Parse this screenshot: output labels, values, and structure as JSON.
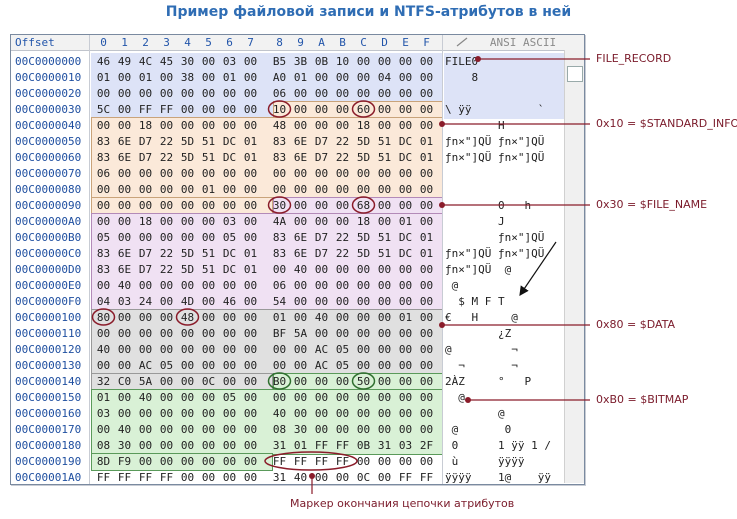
{
  "title": "Пример файловой записи и NTFS-атрибутов в ней",
  "header": {
    "offset_label": "Offset",
    "columns": [
      "0",
      "1",
      "2",
      "3",
      "4",
      "5",
      "6",
      "7",
      "8",
      "9",
      "A",
      "B",
      "C",
      "D",
      "E",
      "F"
    ],
    "ascii_label": "ANSI ASCII"
  },
  "rows": [
    {
      "offset": "00C0000000",
      "bytes": [
        "46",
        "49",
        "4C",
        "45",
        "30",
        "00",
        "03",
        "00",
        "B5",
        "3B",
        "0B",
        "10",
        "00",
        "00",
        "00",
        "00"
      ],
      "ascii": "FILE0"
    },
    {
      "offset": "00C0000010",
      "bytes": [
        "01",
        "00",
        "01",
        "00",
        "38",
        "00",
        "01",
        "00",
        "A0",
        "01",
        "00",
        "00",
        "00",
        "04",
        "00",
        "00"
      ],
      "ascii": "    8"
    },
    {
      "offset": "00C0000020",
      "bytes": [
        "00",
        "00",
        "00",
        "00",
        "00",
        "00",
        "00",
        "00",
        "06",
        "00",
        "00",
        "00",
        "00",
        "00",
        "00",
        "00"
      ],
      "ascii": ""
    },
    {
      "offset": "00C0000030",
      "bytes": [
        "5C",
        "00",
        "FF",
        "FF",
        "00",
        "00",
        "00",
        "00",
        "10",
        "00",
        "00",
        "00",
        "60",
        "00",
        "00",
        "00"
      ],
      "ascii": "\\ ÿÿ          `"
    },
    {
      "offset": "00C0000040",
      "bytes": [
        "00",
        "00",
        "18",
        "00",
        "00",
        "00",
        "00",
        "00",
        "48",
        "00",
        "00",
        "00",
        "18",
        "00",
        "00",
        "00"
      ],
      "ascii": "        H"
    },
    {
      "offset": "00C0000050",
      "bytes": [
        "83",
        "6E",
        "D7",
        "22",
        "5D",
        "51",
        "DC",
        "01",
        "83",
        "6E",
        "D7",
        "22",
        "5D",
        "51",
        "DC",
        "01"
      ],
      "ascii": "ƒn×\"]QÜ ƒn×\"]QÜ"
    },
    {
      "offset": "00C0000060",
      "bytes": [
        "83",
        "6E",
        "D7",
        "22",
        "5D",
        "51",
        "DC",
        "01",
        "83",
        "6E",
        "D7",
        "22",
        "5D",
        "51",
        "DC",
        "01"
      ],
      "ascii": "ƒn×\"]QÜ ƒn×\"]QÜ"
    },
    {
      "offset": "00C0000070",
      "bytes": [
        "06",
        "00",
        "00",
        "00",
        "00",
        "00",
        "00",
        "00",
        "00",
        "00",
        "00",
        "00",
        "00",
        "00",
        "00",
        "00"
      ],
      "ascii": ""
    },
    {
      "offset": "00C0000080",
      "bytes": [
        "00",
        "00",
        "00",
        "00",
        "00",
        "01",
        "00",
        "00",
        "00",
        "00",
        "00",
        "00",
        "00",
        "00",
        "00",
        "00"
      ],
      "ascii": ""
    },
    {
      "offset": "00C0000090",
      "bytes": [
        "00",
        "00",
        "00",
        "00",
        "00",
        "00",
        "00",
        "00",
        "30",
        "00",
        "00",
        "00",
        "68",
        "00",
        "00",
        "00"
      ],
      "ascii": "        0   h"
    },
    {
      "offset": "00C00000A0",
      "bytes": [
        "00",
        "00",
        "18",
        "00",
        "00",
        "00",
        "03",
        "00",
        "4A",
        "00",
        "00",
        "00",
        "18",
        "00",
        "01",
        "00"
      ],
      "ascii": "        J"
    },
    {
      "offset": "00C00000B0",
      "bytes": [
        "05",
        "00",
        "00",
        "00",
        "00",
        "00",
        "05",
        "00",
        "83",
        "6E",
        "D7",
        "22",
        "5D",
        "51",
        "DC",
        "01"
      ],
      "ascii": "        ƒn×\"]QÜ"
    },
    {
      "offset": "00C00000C0",
      "bytes": [
        "83",
        "6E",
        "D7",
        "22",
        "5D",
        "51",
        "DC",
        "01",
        "83",
        "6E",
        "D7",
        "22",
        "5D",
        "51",
        "DC",
        "01"
      ],
      "ascii": "ƒn×\"]QÜ ƒn×\"]QÜ"
    },
    {
      "offset": "00C00000D0",
      "bytes": [
        "83",
        "6E",
        "D7",
        "22",
        "5D",
        "51",
        "DC",
        "01",
        "00",
        "40",
        "00",
        "00",
        "00",
        "00",
        "00",
        "00"
      ],
      "ascii": "ƒn×\"]QÜ  @"
    },
    {
      "offset": "00C00000E0",
      "bytes": [
        "00",
        "40",
        "00",
        "00",
        "00",
        "00",
        "00",
        "00",
        "06",
        "00",
        "00",
        "00",
        "00",
        "00",
        "00",
        "00"
      ],
      "ascii": " @"
    },
    {
      "offset": "00C00000F0",
      "bytes": [
        "04",
        "03",
        "24",
        "00",
        "4D",
        "00",
        "46",
        "00",
        "54",
        "00",
        "00",
        "00",
        "00",
        "00",
        "00",
        "00"
      ],
      "ascii": "  $ M F T"
    },
    {
      "offset": "00C0000100",
      "bytes": [
        "80",
        "00",
        "00",
        "00",
        "48",
        "00",
        "00",
        "00",
        "01",
        "00",
        "40",
        "00",
        "00",
        "00",
        "01",
        "00"
      ],
      "ascii": "€   H     @"
    },
    {
      "offset": "00C0000110",
      "bytes": [
        "00",
        "00",
        "00",
        "00",
        "00",
        "00",
        "00",
        "00",
        "BF",
        "5A",
        "00",
        "00",
        "00",
        "00",
        "00",
        "00"
      ],
      "ascii": "        ¿Z"
    },
    {
      "offset": "00C0000120",
      "bytes": [
        "40",
        "00",
        "00",
        "00",
        "00",
        "00",
        "00",
        "00",
        "00",
        "00",
        "AC",
        "05",
        "00",
        "00",
        "00",
        "00"
      ],
      "ascii": "@         ¬"
    },
    {
      "offset": "00C0000130",
      "bytes": [
        "00",
        "00",
        "AC",
        "05",
        "00",
        "00",
        "00",
        "00",
        "00",
        "00",
        "AC",
        "05",
        "00",
        "00",
        "00",
        "00"
      ],
      "ascii": "  ¬       ¬"
    },
    {
      "offset": "00C0000140",
      "bytes": [
        "32",
        "C0",
        "5A",
        "00",
        "00",
        "0C",
        "00",
        "00",
        "B0",
        "00",
        "00",
        "00",
        "50",
        "00",
        "00",
        "00"
      ],
      "ascii": "2ÀZ     °   P"
    },
    {
      "offset": "00C0000150",
      "bytes": [
        "01",
        "00",
        "40",
        "00",
        "00",
        "00",
        "05",
        "00",
        "00",
        "00",
        "00",
        "00",
        "00",
        "00",
        "00",
        "00"
      ],
      "ascii": "  @"
    },
    {
      "offset": "00C0000160",
      "bytes": [
        "03",
        "00",
        "00",
        "00",
        "00",
        "00",
        "00",
        "00",
        "40",
        "00",
        "00",
        "00",
        "00",
        "00",
        "00",
        "00"
      ],
      "ascii": "        @"
    },
    {
      "offset": "00C0000170",
      "bytes": [
        "00",
        "40",
        "00",
        "00",
        "00",
        "00",
        "00",
        "00",
        "08",
        "30",
        "00",
        "00",
        "00",
        "00",
        "00",
        "00"
      ],
      "ascii": " @       0"
    },
    {
      "offset": "00C0000180",
      "bytes": [
        "08",
        "30",
        "00",
        "00",
        "00",
        "00",
        "00",
        "00",
        "31",
        "01",
        "FF",
        "FF",
        "0B",
        "31",
        "03",
        "2F"
      ],
      "ascii": " 0      1 ÿÿ 1 /"
    },
    {
      "offset": "00C0000190",
      "bytes": [
        "8D",
        "F9",
        "00",
        "00",
        "00",
        "00",
        "00",
        "00",
        "FF",
        "FF",
        "FF",
        "FF",
        "00",
        "00",
        "00",
        "00"
      ],
      "ascii": " ù      ÿÿÿÿ"
    },
    {
      "offset": "00C00001A0",
      "bytes": [
        "FF",
        "FF",
        "FF",
        "FF",
        "00",
        "00",
        "00",
        "00",
        "31",
        "40",
        "00",
        "00",
        "0C",
        "00",
        "FF",
        "FF"
      ],
      "ascii": "ÿÿÿÿ    1@    ÿÿ"
    }
  ],
  "annotations": {
    "file_record": "FILE_RECORD",
    "standard_info": "0x10 = $STANDARD_INFO",
    "file_name": "0x30 = $FILE_NAME",
    "data": "0x80 = $DATA",
    "bitmap": "0xB0 = $BITMAP",
    "end_marker": "Маркер окончания цепочки атрибутов"
  },
  "colors": {
    "title": "#2f6db4",
    "offset": "#1f4fa0",
    "header_region": "#dde3f7",
    "standard_info_region": "#fbe9d9",
    "file_name_region": "#f0e1f3",
    "data_region": "#e0e0e0",
    "bitmap_region": "#d9f1d6",
    "annotation": "#7a1a2a",
    "circle_dark_red": "#8a1c2a",
    "circle_green": "#2f6f2f"
  }
}
